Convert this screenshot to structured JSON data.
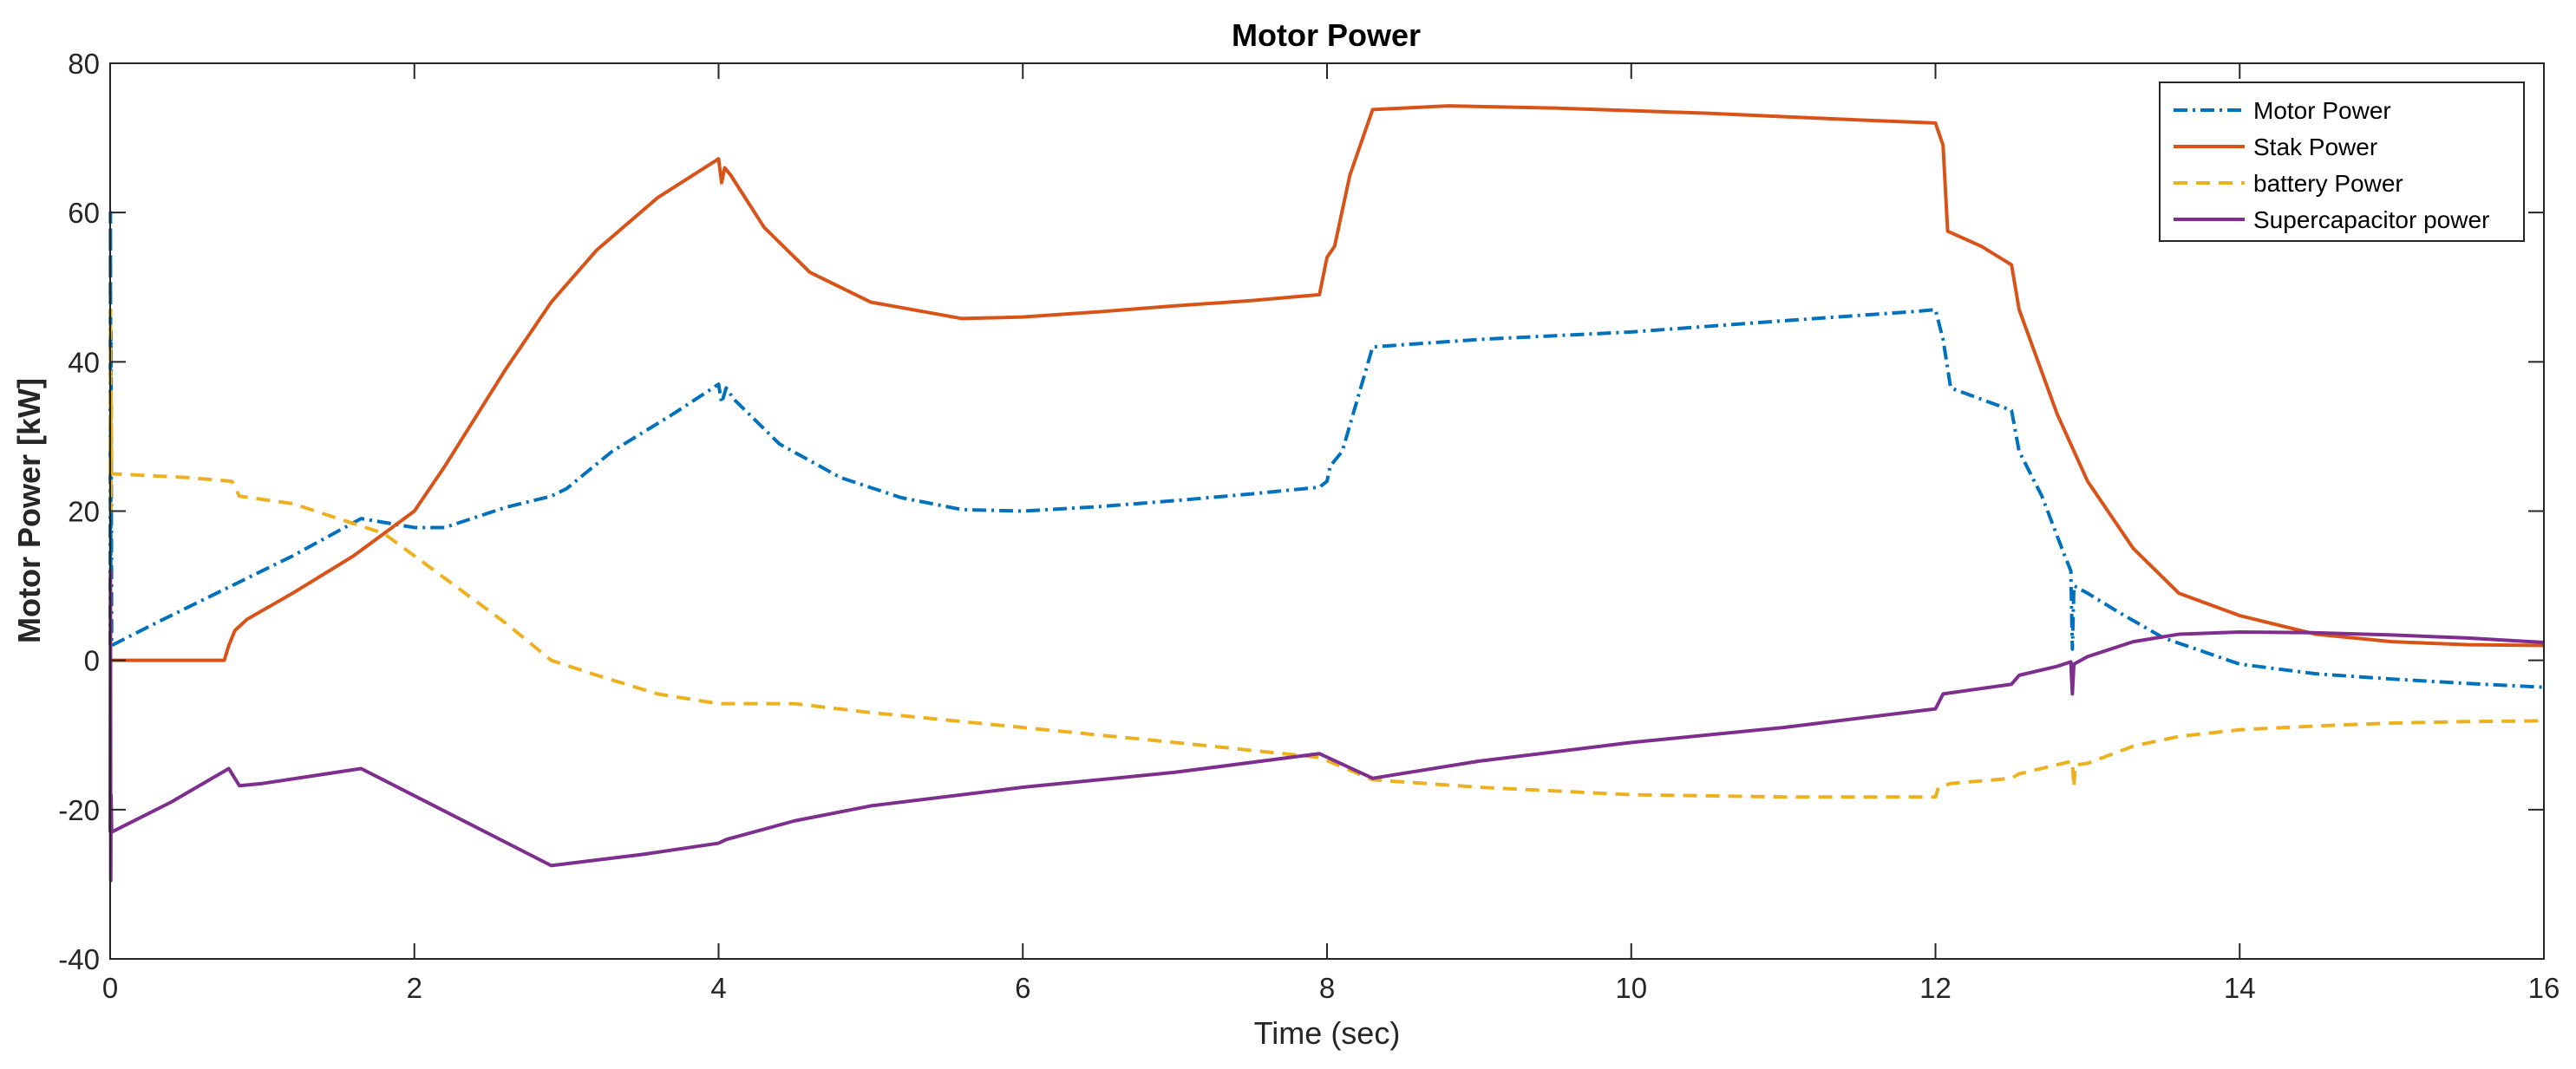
{
  "chart_data": {
    "type": "line",
    "title": "Motor Power",
    "xlabel": "Time (sec)",
    "ylabel": "Motor Power [kW]",
    "xlim": [
      0,
      16
    ],
    "ylim": [
      -40,
      80
    ],
    "xticks": [
      0,
      2,
      4,
      6,
      8,
      10,
      12,
      14,
      16
    ],
    "yticks": [
      -40,
      -20,
      0,
      20,
      40,
      60,
      80
    ],
    "grid": false,
    "legend_position": "top-right",
    "series": [
      {
        "name": "Motor Power",
        "color": "#0072BD",
        "style": "dash-dot",
        "points": [
          [
            0,
            2
          ],
          [
            0.002,
            60
          ],
          [
            0.004,
            12
          ],
          [
            0.006,
            44
          ],
          [
            0.008,
            20
          ],
          [
            0.01,
            2
          ],
          [
            0.3,
            5
          ],
          [
            0.8,
            10
          ],
          [
            1.2,
            14
          ],
          [
            1.65,
            19
          ],
          [
            2.0,
            17.8
          ],
          [
            2.2,
            17.8
          ],
          [
            2.6,
            20.5
          ],
          [
            2.9,
            22
          ],
          [
            3.0,
            23
          ],
          [
            3.3,
            28
          ],
          [
            3.7,
            33
          ],
          [
            4.0,
            37
          ],
          [
            4.02,
            34.5
          ],
          [
            4.05,
            36.5
          ],
          [
            4.1,
            35
          ],
          [
            4.4,
            29
          ],
          [
            4.8,
            24.5
          ],
          [
            5.2,
            21.8
          ],
          [
            5.6,
            20.2
          ],
          [
            6.0,
            20
          ],
          [
            6.5,
            20.6
          ],
          [
            7.0,
            21.4
          ],
          [
            7.5,
            22.3
          ],
          [
            7.95,
            23.2
          ],
          [
            8.0,
            24
          ],
          [
            8.02,
            26
          ],
          [
            8.1,
            28
          ],
          [
            8.2,
            35
          ],
          [
            8.3,
            42
          ],
          [
            9.0,
            43
          ],
          [
            10.0,
            44
          ],
          [
            11.0,
            45.5
          ],
          [
            11.9,
            46.8
          ],
          [
            12.0,
            47
          ],
          [
            12.05,
            43
          ],
          [
            12.1,
            36.5
          ],
          [
            12.5,
            33.5
          ],
          [
            12.55,
            28
          ],
          [
            12.7,
            22
          ],
          [
            12.85,
            14
          ],
          [
            12.89,
            12
          ],
          [
            12.9,
            1.5
          ],
          [
            12.91,
            10
          ],
          [
            13.0,
            9
          ],
          [
            13.2,
            6.5
          ],
          [
            13.5,
            3
          ],
          [
            14.0,
            -0.5
          ],
          [
            14.5,
            -1.8
          ],
          [
            15.0,
            -2.5
          ],
          [
            15.5,
            -3.1
          ],
          [
            16.0,
            -3.6
          ]
        ]
      },
      {
        "name": "Stak Power",
        "color": "#D95319",
        "style": "solid",
        "points": [
          [
            0,
            0
          ],
          [
            0.75,
            0
          ],
          [
            0.78,
            2
          ],
          [
            0.82,
            4
          ],
          [
            0.9,
            5.5
          ],
          [
            1.2,
            9
          ],
          [
            1.6,
            14
          ],
          [
            1.8,
            17
          ],
          [
            2.0,
            20
          ],
          [
            2.2,
            26
          ],
          [
            2.6,
            39
          ],
          [
            2.9,
            48
          ],
          [
            3.2,
            55
          ],
          [
            3.6,
            62
          ],
          [
            4.0,
            67.2
          ],
          [
            4.02,
            64
          ],
          [
            4.04,
            66
          ],
          [
            4.08,
            65
          ],
          [
            4.3,
            58
          ],
          [
            4.6,
            52
          ],
          [
            5.0,
            48
          ],
          [
            5.6,
            45.8
          ],
          [
            6.0,
            46
          ],
          [
            6.5,
            46.7
          ],
          [
            7.0,
            47.5
          ],
          [
            7.5,
            48.2
          ],
          [
            7.95,
            49
          ],
          [
            8.0,
            54
          ],
          [
            8.05,
            55.5
          ],
          [
            8.15,
            65
          ],
          [
            8.3,
            73.8
          ],
          [
            8.8,
            74.3
          ],
          [
            9.5,
            74
          ],
          [
            10.5,
            73.3
          ],
          [
            11.5,
            72.4
          ],
          [
            12.0,
            72
          ],
          [
            12.05,
            69
          ],
          [
            12.08,
            57.5
          ],
          [
            12.3,
            55.5
          ],
          [
            12.5,
            53
          ],
          [
            12.55,
            47
          ],
          [
            12.8,
            33
          ],
          [
            13.0,
            24
          ],
          [
            13.3,
            15
          ],
          [
            13.6,
            9
          ],
          [
            14.0,
            6
          ],
          [
            14.5,
            3.5
          ],
          [
            15.0,
            2.5
          ],
          [
            15.5,
            2.1
          ],
          [
            16.0,
            2
          ]
        ]
      },
      {
        "name": "battery Power",
        "color": "#EDB120",
        "style": "dashed",
        "points": [
          [
            0,
            25
          ],
          [
            0.002,
            47
          ],
          [
            0.004,
            20
          ],
          [
            0.006,
            36
          ],
          [
            0.01,
            25
          ],
          [
            0.5,
            24.5
          ],
          [
            0.8,
            24
          ],
          [
            0.85,
            22
          ],
          [
            1.2,
            21
          ],
          [
            1.5,
            19
          ],
          [
            1.8,
            17
          ],
          [
            2.2,
            11
          ],
          [
            2.6,
            5
          ],
          [
            2.9,
            0
          ],
          [
            3.2,
            -2
          ],
          [
            3.6,
            -4.5
          ],
          [
            4.0,
            -5.8
          ],
          [
            4.5,
            -5.8
          ],
          [
            5.0,
            -7
          ],
          [
            6.0,
            -9
          ],
          [
            7.0,
            -11
          ],
          [
            7.95,
            -13
          ],
          [
            8.3,
            -16
          ],
          [
            9.0,
            -17
          ],
          [
            10.0,
            -18
          ],
          [
            11.0,
            -18.3
          ],
          [
            12.0,
            -18.3
          ],
          [
            12.02,
            -17
          ],
          [
            12.1,
            -16.5
          ],
          [
            12.5,
            -15.8
          ],
          [
            12.55,
            -15.2
          ],
          [
            12.9,
            -13.5
          ],
          [
            12.91,
            -17
          ],
          [
            12.92,
            -14
          ],
          [
            13.0,
            -13.8
          ],
          [
            13.3,
            -11.5
          ],
          [
            13.6,
            -10.2
          ],
          [
            14.0,
            -9.3
          ],
          [
            14.5,
            -8.8
          ],
          [
            15.0,
            -8.4
          ],
          [
            15.5,
            -8.2
          ],
          [
            16.0,
            -8.1
          ]
        ]
      },
      {
        "name": "Supercapacitor power",
        "color": "#7E2F8E",
        "style": "solid",
        "points": [
          [
            0,
            -23
          ],
          [
            0.002,
            12
          ],
          [
            0.004,
            -29.5
          ],
          [
            0.006,
            -18
          ],
          [
            0.01,
            -23
          ],
          [
            0.4,
            -19
          ],
          [
            0.78,
            -14.5
          ],
          [
            0.85,
            -16.8
          ],
          [
            1.0,
            -16.5
          ],
          [
            1.65,
            -14.5
          ],
          [
            2.9,
            -27.5
          ],
          [
            3.5,
            -26
          ],
          [
            4.0,
            -24.5
          ],
          [
            4.05,
            -24
          ],
          [
            4.5,
            -21.5
          ],
          [
            5.0,
            -19.5
          ],
          [
            6.0,
            -17
          ],
          [
            7.0,
            -15
          ],
          [
            7.95,
            -12.5
          ],
          [
            8.3,
            -15.8
          ],
          [
            9.0,
            -13.5
          ],
          [
            10.0,
            -11
          ],
          [
            11.0,
            -9
          ],
          [
            12.0,
            -6.5
          ],
          [
            12.05,
            -4.5
          ],
          [
            12.5,
            -3.2
          ],
          [
            12.55,
            -2
          ],
          [
            12.8,
            -0.8
          ],
          [
            12.89,
            -0.2
          ],
          [
            12.9,
            -4.5
          ],
          [
            12.91,
            -0.5
          ],
          [
            13.0,
            0.5
          ],
          [
            13.3,
            2.5
          ],
          [
            13.6,
            3.5
          ],
          [
            14.0,
            3.8
          ],
          [
            14.5,
            3.7
          ],
          [
            15.0,
            3.4
          ],
          [
            15.5,
            3
          ],
          [
            16.0,
            2.4
          ]
        ]
      }
    ]
  }
}
